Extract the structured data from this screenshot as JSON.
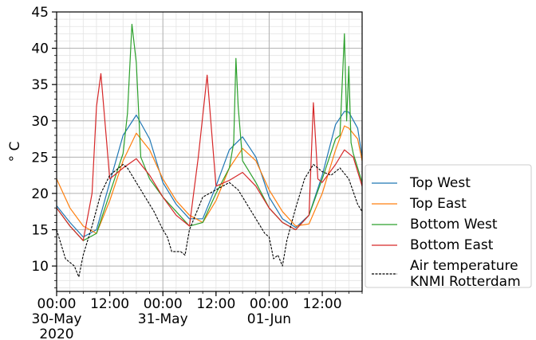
{
  "chart_data": {
    "type": "line",
    "ylabel": "° C",
    "ylim": [
      6.5,
      45
    ],
    "yticks": [
      10,
      15,
      20,
      25,
      30,
      35,
      40,
      45
    ],
    "xlim": [
      "2020-05-30T00:00",
      "2020-06-01T21:00"
    ],
    "xticks": [
      {
        "t": "2020-05-30T00:00",
        "label": [
          "00:00",
          "30-May",
          "2020"
        ]
      },
      {
        "t": "2020-05-30T12:00",
        "label": [
          "12:00"
        ]
      },
      {
        "t": "2020-05-31T00:00",
        "label": [
          "00:00",
          "31-May"
        ]
      },
      {
        "t": "2020-05-31T12:00",
        "label": [
          "12:00"
        ]
      },
      {
        "t": "2020-06-01T00:00",
        "label": [
          "00:00",
          "01-Jun"
        ]
      },
      {
        "t": "2020-06-01T12:00",
        "label": [
          "12:00"
        ]
      }
    ],
    "grid": "major and minor",
    "legend_position": "right",
    "series": [
      {
        "name": "Top West",
        "color": "#1f77b4",
        "x": [
          "2020-05-30T00:00",
          "2020-05-30T03:00",
          "2020-05-30T06:00",
          "2020-05-30T09:00",
          "2020-05-30T12:00",
          "2020-05-30T15:00",
          "2020-05-30T18:00",
          "2020-05-30T21:00",
          "2020-05-31T00:00",
          "2020-05-31T03:00",
          "2020-05-31T06:00",
          "2020-05-31T09:00",
          "2020-05-31T12:00",
          "2020-05-31T15:00",
          "2020-05-31T18:00",
          "2020-05-31T21:00",
          "2020-06-01T00:00",
          "2020-06-01T03:00",
          "2020-06-01T06:00",
          "2020-06-01T09:00",
          "2020-06-01T12:00",
          "2020-06-01T15:00",
          "2020-06-01T17:00",
          "2020-06-01T18:00",
          "2020-06-01T20:00",
          "2020-06-01T21:00"
        ],
        "y": [
          18.3,
          16.0,
          14.0,
          15.0,
          21.5,
          28.0,
          30.8,
          27.5,
          21.5,
          18.5,
          16.5,
          16.5,
          21.0,
          26.0,
          27.8,
          25.0,
          19.5,
          16.5,
          15.3,
          17.0,
          22.5,
          29.5,
          31.3,
          31.2,
          29.0,
          25.0
        ]
      },
      {
        "name": "Top East",
        "color": "#ff7f0e",
        "x": [
          "2020-05-30T00:00",
          "2020-05-30T03:00",
          "2020-05-30T06:00",
          "2020-05-30T09:00",
          "2020-05-30T12:00",
          "2020-05-30T15:00",
          "2020-05-30T18:00",
          "2020-05-30T21:00",
          "2020-05-31T00:00",
          "2020-05-31T03:00",
          "2020-05-31T06:00",
          "2020-05-31T09:00",
          "2020-05-31T12:00",
          "2020-05-31T15:00",
          "2020-05-31T18:00",
          "2020-05-31T21:00",
          "2020-06-01T00:00",
          "2020-06-01T03:00",
          "2020-06-01T06:00",
          "2020-06-01T09:00",
          "2020-06-01T12:00",
          "2020-06-01T15:00",
          "2020-06-01T17:00",
          "2020-06-01T18:00",
          "2020-06-01T20:00",
          "2020-06-01T21:00"
        ],
        "y": [
          22.0,
          18.0,
          15.5,
          14.5,
          19.0,
          24.5,
          28.3,
          26.0,
          22.0,
          19.0,
          17.0,
          16.0,
          19.0,
          23.5,
          26.2,
          24.5,
          20.5,
          17.5,
          15.5,
          15.8,
          20.0,
          26.0,
          29.3,
          29.0,
          27.5,
          24.5
        ]
      },
      {
        "name": "Bottom West",
        "color": "#2ca02c",
        "x": [
          "2020-05-30T00:00",
          "2020-05-30T03:00",
          "2020-05-30T06:00",
          "2020-05-30T09:00",
          "2020-05-30T12:00",
          "2020-05-30T15:00",
          "2020-05-30T16:00",
          "2020-05-30T17:00",
          "2020-05-30T18:00",
          "2020-05-30T19:00",
          "2020-05-30T21:00",
          "2020-05-31T00:00",
          "2020-05-31T03:00",
          "2020-05-31T06:00",
          "2020-05-31T09:00",
          "2020-05-31T12:00",
          "2020-05-31T15:00",
          "2020-05-31T16:00",
          "2020-05-31T16:30",
          "2020-05-31T17:00",
          "2020-05-31T18:00",
          "2020-05-31T21:00",
          "2020-06-01T00:00",
          "2020-06-01T03:00",
          "2020-06-01T06:00",
          "2020-06-01T09:00",
          "2020-06-01T12:00",
          "2020-06-01T15:00",
          "2020-06-01T16:00",
          "2020-06-01T17:00",
          "2020-06-01T17:30",
          "2020-06-01T18:00",
          "2020-06-01T18:30",
          "2020-06-01T19:00",
          "2020-06-01T21:00"
        ],
        "y": [
          18.0,
          15.5,
          13.5,
          14.5,
          20.0,
          25.5,
          31.0,
          43.3,
          38.0,
          25.0,
          22.0,
          19.5,
          17.5,
          15.5,
          16.0,
          20.0,
          23.5,
          27.0,
          38.6,
          32.0,
          24.5,
          21.5,
          18.0,
          16.0,
          15.0,
          17.0,
          22.0,
          27.5,
          28.0,
          42.0,
          30.0,
          37.5,
          27.0,
          25.5,
          21.5
        ]
      },
      {
        "name": "Bottom East",
        "color": "#d62728",
        "x": [
          "2020-05-30T00:00",
          "2020-05-30T03:00",
          "2020-05-30T06:00",
          "2020-05-30T08:00",
          "2020-05-30T09:00",
          "2020-05-30T10:00",
          "2020-05-30T12:00",
          "2020-05-30T15:00",
          "2020-05-30T18:00",
          "2020-05-30T21:00",
          "2020-05-31T00:00",
          "2020-05-31T03:00",
          "2020-05-31T06:00",
          "2020-05-31T08:00",
          "2020-05-31T10:00",
          "2020-05-31T12:00",
          "2020-05-31T15:00",
          "2020-05-31T18:00",
          "2020-05-31T21:00",
          "2020-06-01T00:00",
          "2020-06-01T03:00",
          "2020-06-01T06:00",
          "2020-06-01T09:00",
          "2020-06-01T10:00",
          "2020-06-01T11:00",
          "2020-06-01T12:00",
          "2020-06-01T15:00",
          "2020-06-01T17:00",
          "2020-06-01T19:00",
          "2020-06-01T21:00"
        ],
        "y": [
          18.0,
          15.5,
          13.5,
          20.0,
          32.0,
          36.5,
          22.0,
          23.5,
          24.8,
          22.5,
          19.5,
          17.0,
          15.5,
          25.0,
          36.3,
          21.0,
          21.8,
          22.9,
          21.0,
          18.0,
          16.0,
          15.0,
          17.0,
          32.5,
          22.0,
          21.5,
          24.0,
          26.0,
          25.0,
          21.0
        ]
      },
      {
        "name": "Air temperature\nKNMI Rotterdam",
        "color": "#000000",
        "dashed": true,
        "x": [
          "2020-05-30T00:00",
          "2020-05-30T02:00",
          "2020-05-30T04:00",
          "2020-05-30T05:00",
          "2020-05-30T06:00",
          "2020-05-30T08:00",
          "2020-05-30T10:00",
          "2020-05-30T12:00",
          "2020-05-30T15:00",
          "2020-05-30T16:00",
          "2020-05-30T18:00",
          "2020-05-30T20:00",
          "2020-05-30T22:00",
          "2020-05-31T00:00",
          "2020-05-31T01:00",
          "2020-05-31T02:00",
          "2020-05-31T04:00",
          "2020-05-31T05:00",
          "2020-05-31T06:00",
          "2020-05-31T09:00",
          "2020-05-31T12:00",
          "2020-05-31T15:00",
          "2020-05-31T17:00",
          "2020-05-31T19:00",
          "2020-05-31T21:00",
          "2020-05-31T23:00",
          "2020-06-01T00:00",
          "2020-06-01T01:00",
          "2020-06-01T02:00",
          "2020-06-01T03:00",
          "2020-06-01T04:00",
          "2020-06-01T06:00",
          "2020-06-01T08:00",
          "2020-06-01T10:00",
          "2020-06-01T12:00",
          "2020-06-01T14:00",
          "2020-06-01T16:00",
          "2020-06-01T18:00",
          "2020-06-01T20:00",
          "2020-06-01T21:00"
        ],
        "y": [
          15.0,
          11.0,
          10.0,
          8.5,
          11.5,
          15.5,
          20.0,
          22.5,
          24.0,
          23.5,
          21.5,
          19.5,
          17.5,
          15.0,
          14.0,
          12.0,
          12.0,
          11.5,
          15.0,
          19.5,
          20.5,
          21.5,
          20.5,
          18.5,
          16.5,
          14.5,
          14.0,
          11.0,
          11.5,
          10.0,
          13.5,
          18.0,
          22.0,
          24.0,
          23.0,
          22.5,
          23.5,
          22.0,
          18.5,
          17.5
        ]
      }
    ]
  }
}
